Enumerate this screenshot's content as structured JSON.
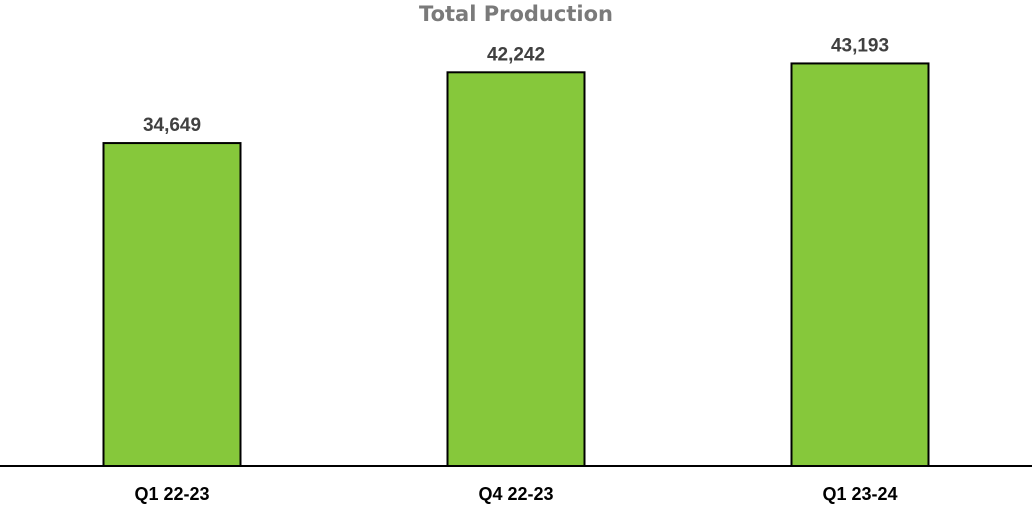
{
  "chart_data": {
    "type": "bar",
    "title": "Total Production",
    "categories": [
      "Q1 22-23",
      "Q4 22-23",
      "Q1 23-24"
    ],
    "values": [
      34649,
      42242,
      43193
    ],
    "data_labels": [
      "34,649",
      "42,242",
      "43,193"
    ],
    "xlabel": "",
    "ylabel": "",
    "ylim": [
      0,
      50000
    ],
    "grid": false,
    "legend": "none",
    "bar_color": "#86c83b",
    "bar_outline_color": "#000000",
    "data_label_color": "#404040",
    "title_color": "#7a7a7a"
  }
}
